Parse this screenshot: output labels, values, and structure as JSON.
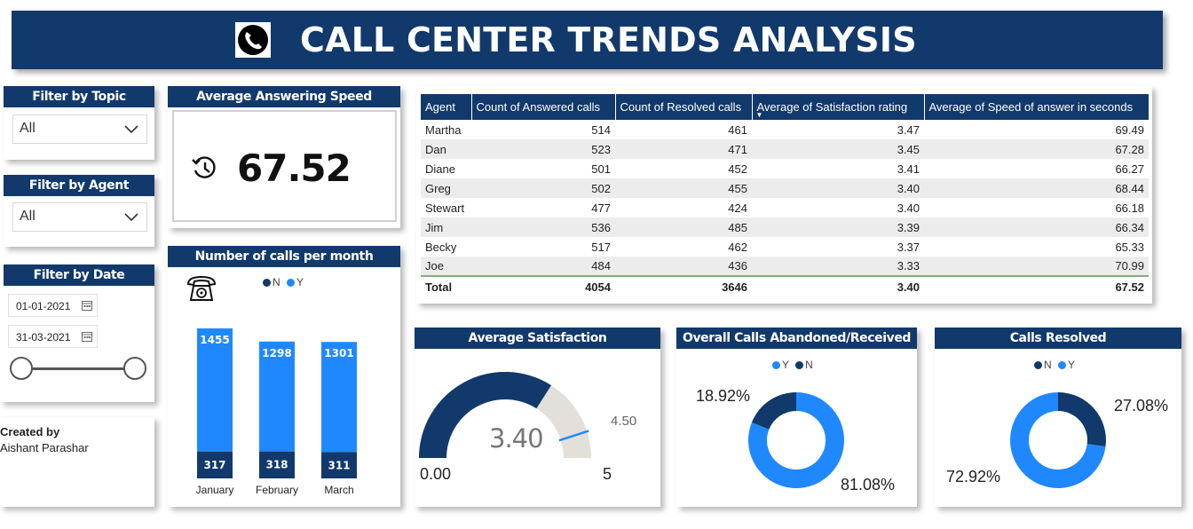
{
  "header": {
    "title": "CALL CENTER TRENDS ANALYSIS",
    "icon": "phone-icon"
  },
  "filters": {
    "topic": {
      "title": "Filter by Topic",
      "value": "All"
    },
    "agent": {
      "title": "Filter by Agent",
      "value": "All"
    },
    "date": {
      "title": "Filter by Date",
      "start": "01-01-2021",
      "end": "31-03-2021"
    }
  },
  "credit": {
    "label": "Created by",
    "name": "Aishant Parashar"
  },
  "answering_speed": {
    "title": "Average Answering Speed",
    "value": "67.52",
    "icon": "clock-history-icon"
  },
  "calls_per_month": {
    "title": "Number of calls per month",
    "icon": "telephone-icon",
    "legend": [
      {
        "name": "N",
        "color": "#12396b"
      },
      {
        "name": "Y",
        "color": "#2088ff"
      }
    ]
  },
  "agent_table": {
    "columns": [
      "Agent",
      "Count of Answered calls",
      "Count of Resolved calls",
      "Average of Satisfaction rating",
      "Average of Speed of answer in seconds"
    ],
    "rows": [
      [
        "Martha",
        "514",
        "461",
        "3.47",
        "69.49"
      ],
      [
        "Dan",
        "523",
        "471",
        "3.45",
        "67.28"
      ],
      [
        "Diane",
        "501",
        "452",
        "3.41",
        "66.27"
      ],
      [
        "Greg",
        "502",
        "455",
        "3.40",
        "68.44"
      ],
      [
        "Stewart",
        "477",
        "424",
        "3.40",
        "66.18"
      ],
      [
        "Jim",
        "536",
        "485",
        "3.39",
        "66.34"
      ],
      [
        "Becky",
        "517",
        "462",
        "3.37",
        "65.33"
      ],
      [
        "Joe",
        "484",
        "436",
        "3.33",
        "70.99"
      ]
    ],
    "total": [
      "Total",
      "4054",
      "3646",
      "3.40",
      "67.52"
    ]
  },
  "satisfaction": {
    "title": "Average Satisfaction",
    "value": "3.40",
    "min": "0.00",
    "max": "5",
    "target": "4.50"
  },
  "abandoned": {
    "title": "Overall Calls Abandoned/Received",
    "legend": [
      {
        "name": "Y",
        "color": "#2088ff"
      },
      {
        "name": "N",
        "color": "#12396b"
      }
    ],
    "small_label": "18.92%",
    "large_label": "81.08%"
  },
  "resolved": {
    "title": "Calls Resolved",
    "legend": [
      {
        "name": "N",
        "color": "#12396b"
      },
      {
        "name": "Y",
        "color": "#2088ff"
      }
    ],
    "small_label": "27.08%",
    "large_label": "72.92%"
  },
  "chart_data": [
    {
      "type": "bar",
      "stacked": true,
      "categories": [
        "January",
        "February",
        "March"
      ],
      "series": [
        {
          "name": "N",
          "values": [
            317,
            318,
            311
          ],
          "color": "#12396b"
        },
        {
          "name": "Y",
          "values": [
            1455,
            1298,
            1301
          ],
          "color": "#2088ff"
        }
      ]
    },
    {
      "type": "gauge",
      "value": 3.4,
      "min": 0,
      "max": 5,
      "target": 4.5
    },
    {
      "type": "pie",
      "donut": true,
      "series": [
        {
          "name": "Y",
          "values": [
            81.08
          ],
          "color": "#2088ff"
        },
        {
          "name": "N",
          "values": [
            18.92
          ],
          "color": "#12396b"
        }
      ]
    },
    {
      "type": "pie",
      "donut": true,
      "series": [
        {
          "name": "N",
          "values": [
            27.08
          ],
          "color": "#12396b"
        },
        {
          "name": "Y",
          "values": [
            72.92
          ],
          "color": "#2088ff"
        }
      ]
    }
  ]
}
